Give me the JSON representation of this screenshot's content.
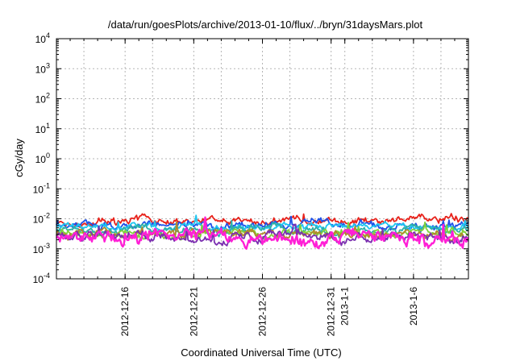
{
  "chart_data": {
    "type": "line",
    "title": "/data/run/goesPlots/archive/2013-01-10/flux/../bryn/31daysMars.plot",
    "xlabel": "Coordinated Universal Time (UTC)",
    "ylabel": "cGy/day",
    "yscale": "log",
    "ylim": [
      0.0001,
      10000
    ],
    "y_ticks": [
      {
        "base": "10",
        "exp": "-4"
      },
      {
        "base": "10",
        "exp": "-3"
      },
      {
        "base": "10",
        "exp": "-2"
      },
      {
        "base": "10",
        "exp": "-1"
      },
      {
        "base": "10",
        "exp": "0"
      },
      {
        "base": "10",
        "exp": "1"
      },
      {
        "base": "10",
        "exp": "2"
      },
      {
        "base": "10",
        "exp": "3"
      },
      {
        "base": "10",
        "exp": "4"
      }
    ],
    "xlim": [
      "2012-12-11",
      "2013-01-10"
    ],
    "x_ticks": [
      {
        "date": "2012-12-16",
        "label": "2012-12-16"
      },
      {
        "date": "2012-12-21",
        "label": "2012-12-21"
      },
      {
        "date": "2012-12-26",
        "label": "2012-12-26"
      },
      {
        "date": "2012-12-31",
        "label": "2012-12-31"
      },
      {
        "date": "2013-01-01",
        "label": "2013-1-1"
      },
      {
        "date": "2013-01-06",
        "label": "2013-1-6"
      }
    ],
    "grid": true,
    "series": [
      {
        "color": "#e8221b",
        "base": 0.0085,
        "noise": 0.14
      },
      {
        "color": "#1f52e8",
        "base": 0.0065,
        "noise": 0.14
      },
      {
        "color": "#1fc6f0",
        "base": 0.0055,
        "noise": 0.12
      },
      {
        "color": "#2db0a8",
        "base": 0.0042,
        "noise": 0.15
      },
      {
        "color": "#7fd23a",
        "base": 0.0033,
        "noise": 0.15
      },
      {
        "color": "#b08a2a",
        "base": 0.003,
        "noise": 0.16
      },
      {
        "color": "#7b2fb0",
        "base": 0.0027,
        "noise": 0.18
      },
      {
        "color": "#ff1fd6",
        "base": 0.0022,
        "noise": 0.26
      }
    ]
  }
}
